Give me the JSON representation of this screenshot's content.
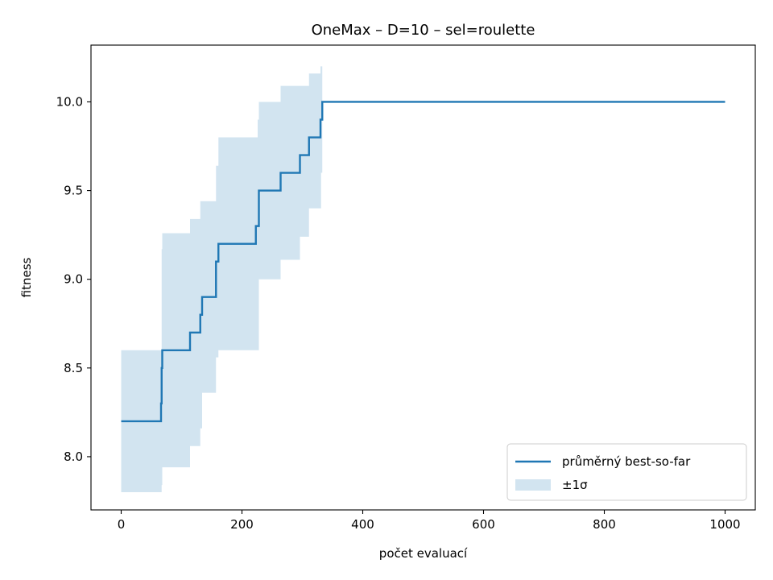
{
  "chart_data": {
    "type": "line",
    "title": "OneMax – D=10 – sel=roulette",
    "xlabel": "počet evaluací",
    "ylabel": "fitness",
    "xlim": [
      -50,
      1050
    ],
    "ylim": [
      7.7,
      10.32
    ],
    "xticks": [
      0,
      200,
      400,
      600,
      800,
      1000
    ],
    "xtick_labels": [
      "0",
      "200",
      "400",
      "600",
      "800",
      "1000"
    ],
    "yticks": [
      8.0,
      8.5,
      9.0,
      9.5,
      10.0
    ],
    "ytick_labels": [
      "8.0",
      "8.5",
      "9.0",
      "9.5",
      "10.0"
    ],
    "grid": false,
    "legend_position": "lower-right",
    "colors": {
      "line": "#1f77b4",
      "band": "#1f77b4",
      "band_opacity": 0.2
    },
    "series": [
      {
        "name": "průměrný best-so-far",
        "kind": "step-line",
        "x": [
          0,
          66,
          67,
          68,
          70,
          114,
          131,
          134,
          157,
          161,
          223,
          226,
          228,
          264,
          296,
          311,
          330,
          331,
          333,
          1000
        ],
        "y": [
          8.2,
          8.3,
          8.5,
          8.6,
          8.6,
          8.7,
          8.8,
          8.9,
          9.1,
          9.2,
          9.3,
          9.3,
          9.5,
          9.6,
          9.7,
          9.8,
          9.9,
          9.9,
          10.0,
          10.0
        ]
      },
      {
        "name": "±1σ",
        "kind": "band",
        "x": [
          0,
          66,
          67,
          68,
          70,
          114,
          131,
          134,
          157,
          161,
          223,
          226,
          228,
          264,
          296,
          311,
          330,
          331,
          333
        ],
        "upper": [
          8.6,
          8.6,
          9.17,
          9.26,
          9.26,
          9.34,
          9.44,
          9.44,
          9.64,
          9.8,
          9.8,
          9.9,
          10.0,
          10.09,
          10.09,
          10.16,
          10.2,
          10.2,
          10.0
        ],
        "lower": [
          7.8,
          7.8,
          7.84,
          7.94,
          7.94,
          8.06,
          8.16,
          8.36,
          8.56,
          8.6,
          8.6,
          8.6,
          9.0,
          9.11,
          9.24,
          9.4,
          9.4,
          9.6,
          10.0
        ]
      }
    ],
    "legend": [
      {
        "label": "průměrný best-so-far",
        "kind": "line"
      },
      {
        "label": "±1σ",
        "kind": "patch"
      }
    ]
  }
}
